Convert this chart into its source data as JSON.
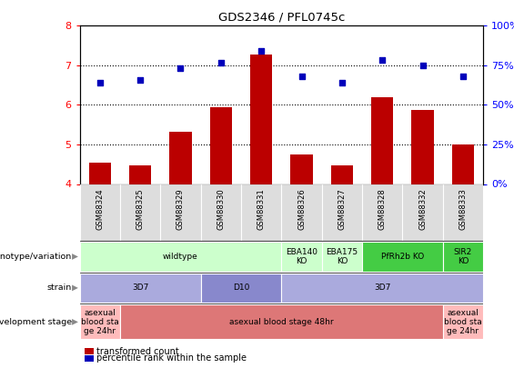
{
  "title": "GDS2346 / PFL0745c",
  "samples": [
    "GSM88324",
    "GSM88325",
    "GSM88329",
    "GSM88330",
    "GSM88331",
    "GSM88326",
    "GSM88327",
    "GSM88328",
    "GSM88332",
    "GSM88333"
  ],
  "bar_values": [
    4.55,
    4.47,
    5.33,
    5.93,
    7.28,
    4.74,
    4.47,
    6.2,
    5.88,
    5.0
  ],
  "scatter_values": [
    6.55,
    6.63,
    6.93,
    7.07,
    7.37,
    6.73,
    6.55,
    7.13,
    7.0,
    6.72
  ],
  "bar_color": "#bb0000",
  "scatter_color": "#0000bb",
  "ylim_left": [
    4,
    8
  ],
  "ylim_right": [
    0,
    100
  ],
  "right_ticks": [
    0,
    25,
    50,
    75,
    100
  ],
  "right_tick_labels": [
    "0%",
    "25%",
    "50%",
    "75%",
    "100%"
  ],
  "left_ticks": [
    4,
    5,
    6,
    7,
    8
  ],
  "dotted_lines": [
    5,
    6,
    7
  ],
  "genotype_segments": [
    {
      "text": "wildtype",
      "start": 0,
      "end": 4,
      "color": "#ccffcc"
    },
    {
      "text": "EBA140\nKO",
      "start": 5,
      "end": 5,
      "color": "#ccffcc"
    },
    {
      "text": "EBA175\nKO",
      "start": 6,
      "end": 6,
      "color": "#ccffcc"
    },
    {
      "text": "PfRh2b KO",
      "start": 7,
      "end": 8,
      "color": "#44cc44"
    },
    {
      "text": "SIR2\nKO",
      "start": 9,
      "end": 9,
      "color": "#44cc44"
    }
  ],
  "strain_segments": [
    {
      "text": "3D7",
      "start": 0,
      "end": 2,
      "color": "#aaaadd"
    },
    {
      "text": "D10",
      "start": 3,
      "end": 4,
      "color": "#8888cc"
    },
    {
      "text": "3D7",
      "start": 5,
      "end": 9,
      "color": "#aaaadd"
    }
  ],
  "stage_segments": [
    {
      "text": "asexual\nblood sta\nge 24hr",
      "start": 0,
      "end": 0,
      "color": "#ffbbbb"
    },
    {
      "text": "asexual blood stage 48hr",
      "start": 1,
      "end": 8,
      "color": "#dd7777"
    },
    {
      "text": "asexual\nblood sta\nge 24hr",
      "start": 9,
      "end": 9,
      "color": "#ffbbbb"
    }
  ],
  "row_labels": [
    "genotype/variation",
    "strain",
    "development stage"
  ],
  "legend_items": [
    {
      "label": "transformed count",
      "color": "#bb0000"
    },
    {
      "label": "percentile rank within the sample",
      "color": "#0000bb"
    }
  ],
  "xtick_bg": "#dddddd",
  "chart_bg": "#ffffff",
  "spine_color": "#000000"
}
